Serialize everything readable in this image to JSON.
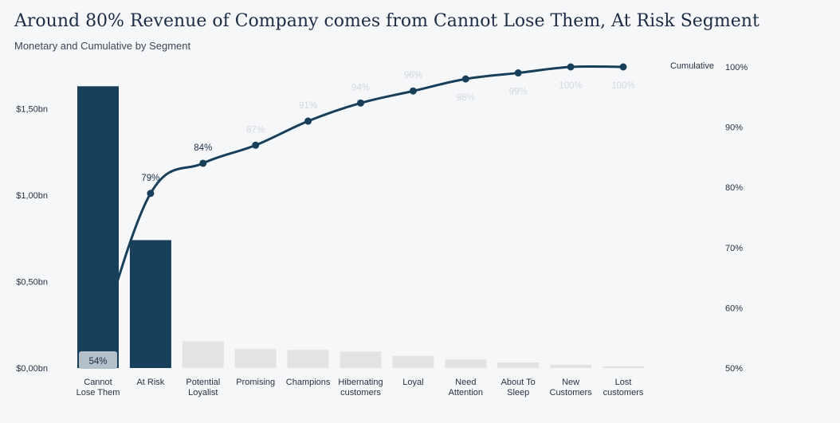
{
  "header": {
    "title": "Around 80% Revenue of Company comes from Cannot Lose Them, At Risk Segment",
    "subtitle": "Monetary and Cumulative by Segment"
  },
  "chart_data": {
    "type": "bar",
    "title": "Around 80% Revenue of Company comes from Cannot Lose Them, At Risk Segment",
    "subtitle": "Monetary and Cumulative by Segment",
    "categories": [
      [
        "Cannot",
        "Lose Them"
      ],
      [
        "At Risk"
      ],
      [
        "Potential",
        "Loyalist"
      ],
      [
        "Promising"
      ],
      [
        "Champions"
      ],
      [
        "Hibernating",
        "customers"
      ],
      [
        "Loyal"
      ],
      [
        "Need",
        "Attention"
      ],
      [
        "About To",
        "Sleep"
      ],
      [
        "New",
        "Customers"
      ],
      [
        "Lost",
        "customers"
      ]
    ],
    "series": [
      {
        "values": [
          1.63,
          0.74,
          0.155,
          0.11,
          0.105,
          0.095,
          0.07,
          0.05,
          0.032,
          0.02,
          0.01
        ],
        "axis": "left",
        "colors": [
          "#173f5a",
          "#173f5a",
          "#e3e3e3",
          "#e3e3e3",
          "#e3e3e3",
          "#e3e3e3",
          "#e3e3e3",
          "#e3e3e3",
          "#e3e3e3",
          "#e3e3e3",
          "#e3e3e3"
        ]
      },
      {
        "name": "Cumulative",
        "type": "line",
        "axis": "right",
        "values": [
          54,
          79,
          84,
          87,
          91,
          94,
          96,
          98,
          99,
          100,
          100
        ],
        "labels": [
          "54%",
          "79%",
          "84%",
          "87%",
          "91%",
          "94%",
          "96%",
          "98%",
          "99%",
          "100%",
          "100%"
        ],
        "color": "#173f5a"
      }
    ],
    "left_axis": {
      "ticks": [
        0,
        0.5,
        1.0,
        1.5
      ],
      "tick_labels": [
        "$0,00bn",
        "$0,50bn",
        "$1,00bn",
        "$1,50bn"
      ],
      "range": [
        0,
        1.75
      ]
    },
    "right_axis": {
      "ticks": [
        50,
        60,
        70,
        80,
        90,
        100
      ],
      "tick_labels": [
        "50%",
        "60%",
        "70%",
        "80%",
        "90%",
        "100%"
      ],
      "range": [
        50,
        100
      ]
    },
    "legend": {
      "label": "Cumulative",
      "placement": "top-right"
    },
    "grid": false,
    "colors": {
      "accent": "#173f5a",
      "muted": "#e3e3e3",
      "label_dark": "#1e2d45",
      "label_faded": "#d3d6db"
    }
  }
}
